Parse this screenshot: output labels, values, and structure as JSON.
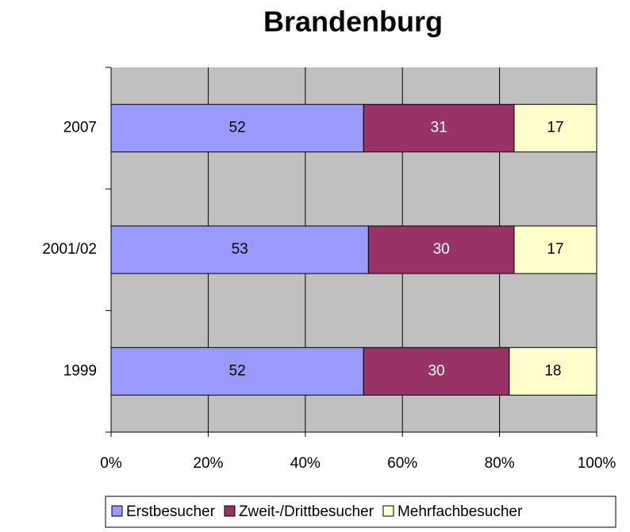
{
  "chart_data": {
    "type": "bar",
    "orientation": "horizontal",
    "stacked": true,
    "title": "Brandenburg",
    "categories": [
      "1999",
      "2001/02",
      "2007"
    ],
    "series": [
      {
        "name": "Erstbesucher",
        "color": "#9999ff",
        "label_color": "#000000",
        "values": [
          52,
          53,
          52
        ]
      },
      {
        "name": "Zweit-/Drittbesucher",
        "color": "#993366",
        "label_color": "#ffffff",
        "values": [
          30,
          30,
          31
        ]
      },
      {
        "name": "Mehrfachbesucher",
        "color": "#ffffcc",
        "label_color": "#000000",
        "values": [
          18,
          17,
          17
        ]
      }
    ],
    "xlim": [
      0,
      100
    ],
    "xticks": [
      {
        "value": 0,
        "label": "0%"
      },
      {
        "value": 20,
        "label": "20%"
      },
      {
        "value": 40,
        "label": "40%"
      },
      {
        "value": 60,
        "label": "60%"
      },
      {
        "value": 80,
        "label": "80%"
      },
      {
        "value": 100,
        "label": "100%"
      }
    ],
    "grid": true,
    "plot_background": "#c0c0c0",
    "legend": "bottom"
  }
}
